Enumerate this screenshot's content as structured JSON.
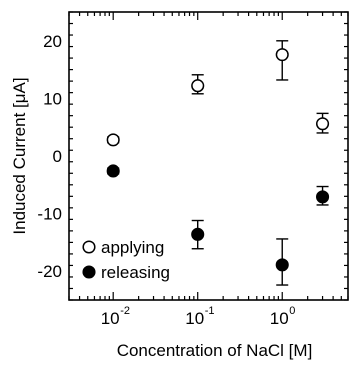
{
  "chart_data": {
    "type": "scatter",
    "title": "",
    "xlabel": "Concentration of NaCl [M]",
    "ylabel": "Induced Current [μA]",
    "x_scale": "log",
    "xlim": [
      0.003,
      6
    ],
    "ylim": [
      -25,
      25
    ],
    "grid": false,
    "legend_position": "bottom-left",
    "x_ticks": [
      {
        "value": 0.01,
        "base": "10",
        "exp": "-2"
      },
      {
        "value": 0.1,
        "base": "10",
        "exp": "-1"
      },
      {
        "value": 1,
        "base": "10",
        "exp": "0"
      }
    ],
    "y_ticks": [
      {
        "value": 20,
        "label": "20"
      },
      {
        "value": 10,
        "label": "10"
      },
      {
        "value": 0,
        "label": "0"
      },
      {
        "value": -10,
        "label": "-10"
      },
      {
        "value": -20,
        "label": "-20"
      }
    ],
    "series": [
      {
        "name": "applying",
        "marker": "open-circle",
        "x": [
          0.01,
          0.1,
          1,
          3
        ],
        "y": [
          2.8,
          12.2,
          17.6,
          5.6
        ],
        "err_low": [
          0.5,
          1.4,
          4.4,
          1.6
        ],
        "err_high": [
          0.5,
          1.9,
          2.4,
          1.8
        ]
      },
      {
        "name": "releasing",
        "marker": "filled-circle",
        "x": [
          0.01,
          0.1,
          1,
          3
        ],
        "y": [
          -2.6,
          -13.6,
          -18.9,
          -7.1
        ],
        "err_low": [
          0.5,
          2.5,
          3.5,
          1.4
        ],
        "err_high": [
          0.5,
          2.4,
          4.5,
          1.8
        ]
      }
    ]
  }
}
